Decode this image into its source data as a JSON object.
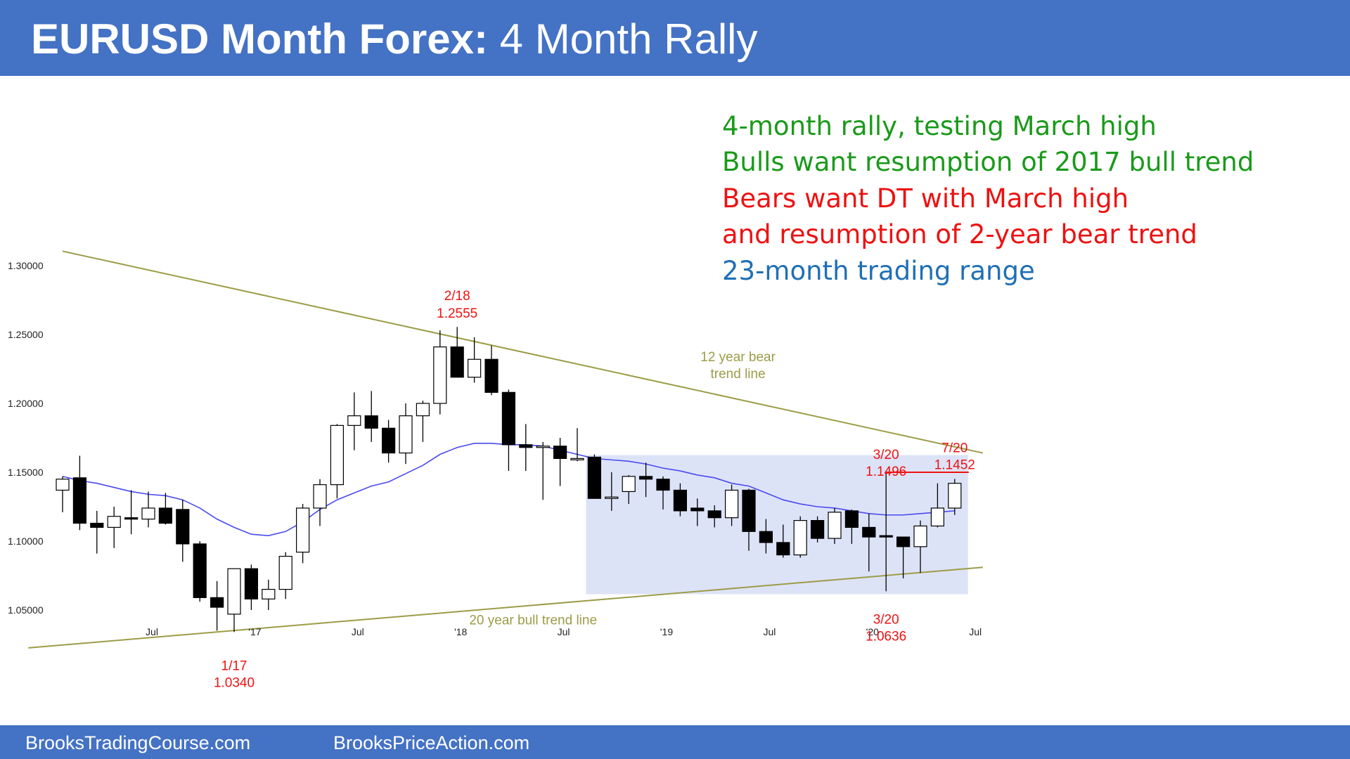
{
  "header": {
    "title_bold": "EURUSD Month Forex:",
    "title_rest": " 4 Month Rally"
  },
  "footer": {
    "left": "BrooksTradingCourse.com",
    "right": "BrooksPriceAction.com"
  },
  "annotations": [
    {
      "text": "4-month rally, testing March high",
      "color": "#1a9a1a"
    },
    {
      "text": "Bulls want resumption of 2017 bull trend",
      "color": "#1a9a1a"
    },
    {
      "text": "Bears want DT with March high",
      "color": "#ee1111"
    },
    {
      "text": "and resumption of 2-year bear trend",
      "color": "#ee1111"
    },
    {
      "text": "23-month trading range",
      "color": "#1f6fb5"
    }
  ],
  "colors": {
    "header_bg": "#4472c4",
    "bull_candle": "#ffffff",
    "bear_candle": "#000000",
    "moving_average": "#4a4af0",
    "trend_line": "#9c9c48",
    "range_box": "#dde3f7",
    "label_red": "#ee1111"
  },
  "chart_data": {
    "type": "candlestick",
    "symbol": "EURUSD",
    "timeframe": "Month",
    "y_ticks": [
      "1.05000",
      "1.10000",
      "1.15000",
      "1.20000",
      "1.25000",
      "1.30000"
    ],
    "ylim": [
      1.0057,
      1.3435
    ],
    "x_ticks": [
      {
        "label": "Jul",
        "date": "2016-07"
      },
      {
        "label": "'17",
        "date": "2017-01"
      },
      {
        "label": "Jul",
        "date": "2017-07"
      },
      {
        "label": "'18",
        "date": "2018-01"
      },
      {
        "label": "Jul",
        "date": "2018-07"
      },
      {
        "label": "'19",
        "date": "2019-01"
      },
      {
        "label": "Jul",
        "date": "2019-07"
      },
      {
        "label": "'20",
        "date": "2020-01"
      },
      {
        "label": "Jul",
        "date": "2020-07"
      }
    ],
    "candles": [
      {
        "date": "2016-02",
        "o": 1.137,
        "h": 1.147,
        "l": 1.121,
        "c": 1.145
      },
      {
        "date": "2016-03",
        "o": 1.146,
        "h": 1.162,
        "l": 1.108,
        "c": 1.113
      },
      {
        "date": "2016-04",
        "o": 1.113,
        "h": 1.122,
        "l": 1.091,
        "c": 1.11
      },
      {
        "date": "2016-05",
        "o": 1.11,
        "h": 1.125,
        "l": 1.095,
        "c": 1.118
      },
      {
        "date": "2016-06",
        "o": 1.117,
        "h": 1.137,
        "l": 1.105,
        "c": 1.116
      },
      {
        "date": "2016-07",
        "o": 1.116,
        "h": 1.136,
        "l": 1.11,
        "c": 1.124
      },
      {
        "date": "2016-08",
        "o": 1.124,
        "h": 1.135,
        "l": 1.112,
        "c": 1.113
      },
      {
        "date": "2016-09",
        "o": 1.123,
        "h": 1.13,
        "l": 1.085,
        "c": 1.098
      },
      {
        "date": "2016-10",
        "o": 1.098,
        "h": 1.1,
        "l": 1.056,
        "c": 1.059
      },
      {
        "date": "2016-11",
        "o": 1.059,
        "h": 1.071,
        "l": 1.035,
        "c": 1.052
      },
      {
        "date": "2016-12",
        "o": 1.047,
        "h": 1.08,
        "l": 1.034,
        "c": 1.08
      },
      {
        "date": "2017-01",
        "o": 1.08,
        "h": 1.083,
        "l": 1.05,
        "c": 1.058
      },
      {
        "date": "2017-02",
        "o": 1.058,
        "h": 1.072,
        "l": 1.05,
        "c": 1.065
      },
      {
        "date": "2017-03",
        "o": 1.065,
        "h": 1.092,
        "l": 1.058,
        "c": 1.089
      },
      {
        "date": "2017-04",
        "o": 1.092,
        "h": 1.127,
        "l": 1.084,
        "c": 1.124
      },
      {
        "date": "2017-05",
        "o": 1.124,
        "h": 1.145,
        "l": 1.111,
        "c": 1.141
      },
      {
        "date": "2017-06",
        "o": 1.141,
        "h": 1.185,
        "l": 1.131,
        "c": 1.184
      },
      {
        "date": "2017-07",
        "o": 1.184,
        "h": 1.208,
        "l": 1.166,
        "c": 1.191
      },
      {
        "date": "2017-08",
        "o": 1.191,
        "h": 1.209,
        "l": 1.172,
        "c": 1.182
      },
      {
        "date": "2017-09",
        "o": 1.182,
        "h": 1.188,
        "l": 1.157,
        "c": 1.164
      },
      {
        "date": "2017-10",
        "o": 1.164,
        "h": 1.2,
        "l": 1.156,
        "c": 1.191
      },
      {
        "date": "2017-11",
        "o": 1.191,
        "h": 1.202,
        "l": 1.172,
        "c": 1.2
      },
      {
        "date": "2017-12",
        "o": 1.2,
        "h": 1.253,
        "l": 1.192,
        "c": 1.241
      },
      {
        "date": "2018-01",
        "o": 1.241,
        "h": 1.2555,
        "l": 1.219,
        "c": 1.219
      },
      {
        "date": "2018-02",
        "o": 1.219,
        "h": 1.248,
        "l": 1.215,
        "c": 1.232
      },
      {
        "date": "2018-03",
        "o": 1.232,
        "h": 1.242,
        "l": 1.206,
        "c": 1.208
      },
      {
        "date": "2018-04",
        "o": 1.208,
        "h": 1.21,
        "l": 1.151,
        "c": 1.17
      },
      {
        "date": "2018-05",
        "o": 1.17,
        "h": 1.185,
        "l": 1.151,
        "c": 1.168
      },
      {
        "date": "2018-06",
        "o": 1.168,
        "h": 1.172,
        "l": 1.13,
        "c": 1.169
      },
      {
        "date": "2018-07",
        "o": 1.169,
        "h": 1.175,
        "l": 1.14,
        "c": 1.16
      },
      {
        "date": "2018-08",
        "o": 1.16,
        "h": 1.182,
        "l": 1.158,
        "c": 1.16
      },
      {
        "date": "2018-09",
        "o": 1.161,
        "h": 1.163,
        "l": 1.131,
        "c": 1.131
      },
      {
        "date": "2018-10",
        "o": 1.131,
        "h": 1.15,
        "l": 1.122,
        "c": 1.132
      },
      {
        "date": "2018-11",
        "o": 1.136,
        "h": 1.148,
        "l": 1.127,
        "c": 1.147
      },
      {
        "date": "2018-12",
        "o": 1.147,
        "h": 1.157,
        "l": 1.132,
        "c": 1.145
      },
      {
        "date": "2019-01",
        "o": 1.145,
        "h": 1.147,
        "l": 1.123,
        "c": 1.137
      },
      {
        "date": "2019-02",
        "o": 1.137,
        "h": 1.142,
        "l": 1.118,
        "c": 1.122
      },
      {
        "date": "2019-03",
        "o": 1.124,
        "h": 1.131,
        "l": 1.111,
        "c": 1.122
      },
      {
        "date": "2019-04",
        "o": 1.122,
        "h": 1.126,
        "l": 1.11,
        "c": 1.117
      },
      {
        "date": "2019-05",
        "o": 1.117,
        "h": 1.141,
        "l": 1.111,
        "c": 1.137
      },
      {
        "date": "2019-06",
        "o": 1.137,
        "h": 1.138,
        "l": 1.093,
        "c": 1.107
      },
      {
        "date": "2019-07",
        "o": 1.107,
        "h": 1.116,
        "l": 1.091,
        "c": 1.099
      },
      {
        "date": "2019-08",
        "o": 1.099,
        "h": 1.112,
        "l": 1.088,
        "c": 1.09
      },
      {
        "date": "2019-09",
        "o": 1.09,
        "h": 1.118,
        "l": 1.088,
        "c": 1.115
      },
      {
        "date": "2019-10",
        "o": 1.115,
        "h": 1.118,
        "l": 1.099,
        "c": 1.102
      },
      {
        "date": "2019-11",
        "o": 1.102,
        "h": 1.124,
        "l": 1.098,
        "c": 1.121
      },
      {
        "date": "2019-12",
        "o": 1.122,
        "h": 1.123,
        "l": 1.098,
        "c": 1.11
      },
      {
        "date": "2020-01",
        "o": 1.11,
        "h": 1.12,
        "l": 1.078,
        "c": 1.103
      },
      {
        "date": "2020-02",
        "o": 1.104,
        "h": 1.1496,
        "l": 1.0636,
        "c": 1.103
      },
      {
        "date": "2020-03",
        "o": 1.103,
        "h": 1.103,
        "l": 1.073,
        "c": 1.096
      },
      {
        "date": "2020-04",
        "o": 1.096,
        "h": 1.115,
        "l": 1.077,
        "c": 1.111
      },
      {
        "date": "2020-05",
        "o": 1.111,
        "h": 1.142,
        "l": 1.11,
        "c": 1.124
      },
      {
        "date": "2020-06",
        "o": 1.124,
        "h": 1.1452,
        "l": 1.119,
        "c": 1.142
      }
    ],
    "moving_average": [
      {
        "date": "2016-02",
        "v": 1.147
      },
      {
        "date": "2016-03",
        "v": 1.144
      },
      {
        "date": "2016-04",
        "v": 1.142
      },
      {
        "date": "2016-05",
        "v": 1.139
      },
      {
        "date": "2016-06",
        "v": 1.136
      },
      {
        "date": "2016-07",
        "v": 1.134
      },
      {
        "date": "2016-08",
        "v": 1.133
      },
      {
        "date": "2016-09",
        "v": 1.13
      },
      {
        "date": "2016-10",
        "v": 1.124
      },
      {
        "date": "2016-11",
        "v": 1.116
      },
      {
        "date": "2016-12",
        "v": 1.11
      },
      {
        "date": "2017-01",
        "v": 1.105
      },
      {
        "date": "2017-02",
        "v": 1.104
      },
      {
        "date": "2017-03",
        "v": 1.107
      },
      {
        "date": "2017-04",
        "v": 1.114
      },
      {
        "date": "2017-05",
        "v": 1.123
      },
      {
        "date": "2017-06",
        "v": 1.13
      },
      {
        "date": "2017-07",
        "v": 1.135
      },
      {
        "date": "2017-08",
        "v": 1.14
      },
      {
        "date": "2017-09",
        "v": 1.143
      },
      {
        "date": "2017-10",
        "v": 1.149
      },
      {
        "date": "2017-11",
        "v": 1.155
      },
      {
        "date": "2017-12",
        "v": 1.163
      },
      {
        "date": "2018-01",
        "v": 1.168
      },
      {
        "date": "2018-02",
        "v": 1.171
      },
      {
        "date": "2018-03",
        "v": 1.171
      },
      {
        "date": "2018-04",
        "v": 1.17
      },
      {
        "date": "2018-05",
        "v": 1.17
      },
      {
        "date": "2018-06",
        "v": 1.169
      },
      {
        "date": "2018-07",
        "v": 1.166
      },
      {
        "date": "2018-08",
        "v": 1.163
      },
      {
        "date": "2018-09",
        "v": 1.16
      },
      {
        "date": "2018-10",
        "v": 1.159
      },
      {
        "date": "2018-11",
        "v": 1.158
      },
      {
        "date": "2018-12",
        "v": 1.156
      },
      {
        "date": "2019-01",
        "v": 1.153
      },
      {
        "date": "2019-02",
        "v": 1.151
      },
      {
        "date": "2019-03",
        "v": 1.148
      },
      {
        "date": "2019-04",
        "v": 1.146
      },
      {
        "date": "2019-05",
        "v": 1.142
      },
      {
        "date": "2019-06",
        "v": 1.14
      },
      {
        "date": "2019-07",
        "v": 1.135
      },
      {
        "date": "2019-08",
        "v": 1.13
      },
      {
        "date": "2019-09",
        "v": 1.127
      },
      {
        "date": "2019-10",
        "v": 1.125
      },
      {
        "date": "2019-11",
        "v": 1.124
      },
      {
        "date": "2019-12",
        "v": 1.122
      },
      {
        "date": "2020-01",
        "v": 1.12
      },
      {
        "date": "2020-02",
        "v": 1.119
      },
      {
        "date": "2020-03",
        "v": 1.119
      },
      {
        "date": "2020-04",
        "v": 1.12
      },
      {
        "date": "2020-05",
        "v": 1.121
      },
      {
        "date": "2020-06",
        "v": 1.122
      }
    ],
    "bear_trend_line": {
      "label": "12 year bear\ntrend line",
      "from": {
        "date": "2016-02",
        "v": 1.3105
      },
      "to": {
        "date": "2020-06",
        "v": 1.164
      }
    },
    "bull_trend_line": {
      "label": "20 year bull trend line",
      "from": {
        "date": "2015-12",
        "v": 1.0225
      },
      "to": {
        "date": "2020-06",
        "v": 1.081
      }
    },
    "trading_range": {
      "label": "23-month trading range",
      "from": "2018-09",
      "to": "2020-06",
      "high": 1.1625,
      "low": 1.0615
    },
    "march_high_line": {
      "from": "2020-02",
      "to": "2020-06",
      "v": 1.15
    },
    "point_labels": [
      {
        "date_text": "2/18",
        "value_text": "1.2555"
      },
      {
        "date_text": "1/17",
        "value_text": "1.0340"
      },
      {
        "date_text": "3/20",
        "value_text": "1.1496"
      },
      {
        "date_text": "3/20",
        "value_text": "1.0636"
      },
      {
        "date_text": "7/20",
        "value_text": "1.1452"
      }
    ]
  }
}
